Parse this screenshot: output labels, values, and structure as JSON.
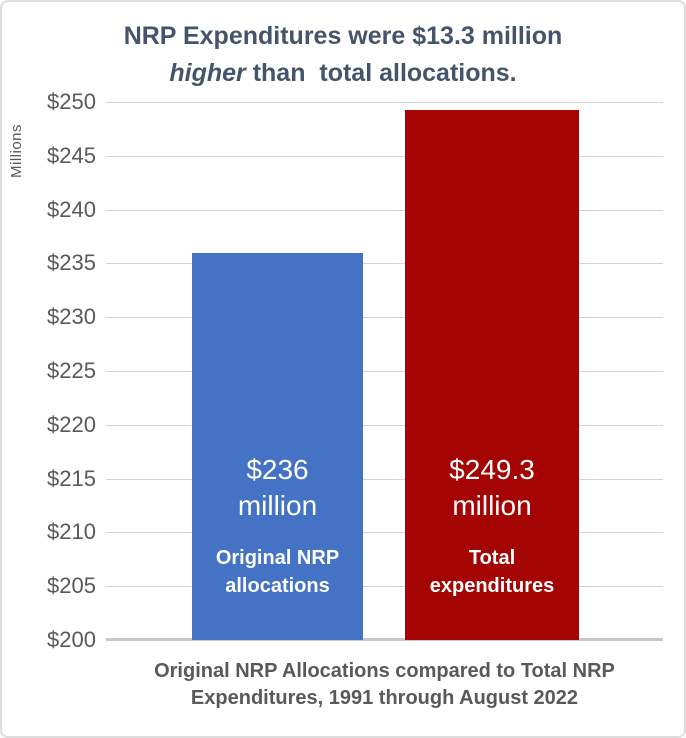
{
  "title": {
    "line1": "NRP Expenditures were $13.3 million",
    "line2_italic": "higher",
    "line2_rest": " than  total allocations."
  },
  "y_axis": {
    "label": "Millions"
  },
  "caption": {
    "line1": "Original NRP Allocations compared to Total NRP",
    "line2": "Expenditures, 1991 through August 2022"
  },
  "colors": {
    "background": "#FFFFFF",
    "frame_border": "#DCDCDC",
    "title_text": "#44546A",
    "axis_text": "#595959",
    "caption_text": "#595959",
    "gridline": "#D2D2D2",
    "baseline": "#C4C7CB",
    "bar_blue": "#4472C4",
    "bar_dark_red": "#A40404",
    "bar_label_text": "#FFFFFF"
  },
  "chart_data": {
    "type": "bar",
    "title": "NRP Expenditures were $13.3 million higher than total allocations.",
    "xlabel": "",
    "ylabel": "Millions",
    "ylim": [
      200,
      250
    ],
    "ytick_step": 5,
    "grid": true,
    "legend": "none",
    "categories": [
      "Original NRP allocations",
      "Total expenditures"
    ],
    "values": [
      236,
      249.3
    ],
    "yticks": [
      {
        "label": "$250",
        "value": 250
      },
      {
        "label": "$245",
        "value": 245
      },
      {
        "label": "$240",
        "value": 240
      },
      {
        "label": "$235",
        "value": 235
      },
      {
        "label": "$230",
        "value": 230
      },
      {
        "label": "$225",
        "value": 225
      },
      {
        "label": "$220",
        "value": 220
      },
      {
        "label": "$215",
        "value": 215
      },
      {
        "label": "$210",
        "value": 210
      },
      {
        "label": "$205",
        "value": 205
      },
      {
        "label": "$200",
        "value": 200
      }
    ],
    "bars": [
      {
        "value": 236,
        "color": "#4472C4",
        "value_lines": [
          "$236",
          "million"
        ],
        "category_lines": [
          "Original NRP",
          "allocations"
        ]
      },
      {
        "value": 249.3,
        "color": "#A40404",
        "value_lines": [
          "$249.3",
          "million"
        ],
        "category_lines": [
          "Total",
          "expenditures"
        ]
      }
    ],
    "caption": "Original NRP Allocations compared to Total NRP Expenditures, 1991 through August 2022"
  }
}
